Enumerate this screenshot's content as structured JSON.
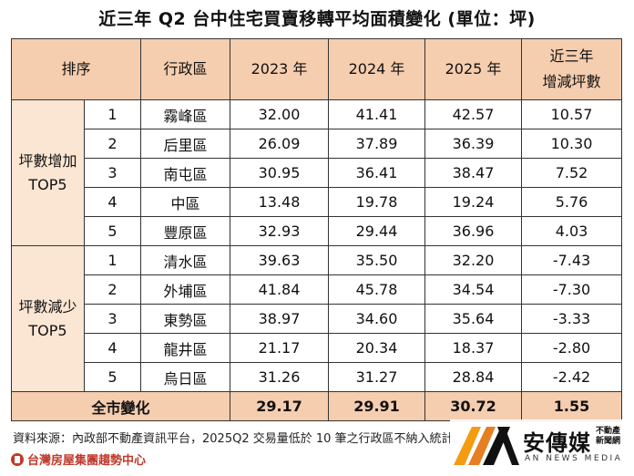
{
  "title": "近三年 Q2  台中住宅買賣移轉平均面積變化  (單位：坪)",
  "headers": {
    "rank": "排序",
    "district": "行政區",
    "y2023": "2023 年",
    "y2024": "2024 年",
    "y2025": "2025 年",
    "change_line1": "近三年",
    "change_line2": "增減坪數"
  },
  "groups": {
    "increase_line1": "坪數增加",
    "increase_line2": "TOP5",
    "decrease_line1": "坪數減少",
    "decrease_line2": "TOP5"
  },
  "rows": [
    {
      "rank": "1",
      "district": "霧峰區",
      "y2023": "32.00",
      "y2024": "41.41",
      "y2025": "42.57",
      "change": "10.57"
    },
    {
      "rank": "2",
      "district": "后里區",
      "y2023": "26.09",
      "y2024": "37.89",
      "y2025": "36.39",
      "change": "10.30"
    },
    {
      "rank": "3",
      "district": "南屯區",
      "y2023": "30.95",
      "y2024": "36.41",
      "y2025": "38.47",
      "change": "7.52"
    },
    {
      "rank": "4",
      "district": "中區",
      "y2023": "13.48",
      "y2024": "19.78",
      "y2025": "19.24",
      "change": "5.76"
    },
    {
      "rank": "5",
      "district": "豐原區",
      "y2023": "32.93",
      "y2024": "29.44",
      "y2025": "36.96",
      "change": "4.03"
    },
    {
      "rank": "1",
      "district": "清水區",
      "y2023": "39.63",
      "y2024": "35.50",
      "y2025": "32.20",
      "change": "-7.43"
    },
    {
      "rank": "2",
      "district": "外埔區",
      "y2023": "41.84",
      "y2024": "45.78",
      "y2025": "34.54",
      "change": "-7.30"
    },
    {
      "rank": "3",
      "district": "東勢區",
      "y2023": "38.97",
      "y2024": "34.60",
      "y2025": "35.64",
      "change": "-3.33"
    },
    {
      "rank": "4",
      "district": "龍井區",
      "y2023": "21.17",
      "y2024": "20.34",
      "y2025": "18.37",
      "change": "-2.80"
    },
    {
      "rank": "5",
      "district": "烏日區",
      "y2023": "31.26",
      "y2024": "31.27",
      "y2025": "28.84",
      "change": "-2.42"
    }
  ],
  "total": {
    "label": "全市變化",
    "y2023": "29.17",
    "y2024": "29.91",
    "y2025": "30.72",
    "change": "1.55"
  },
  "footnote": "資料來源：內政部不動產資訊平台，2025Q2 交易量低於 10 筆之行政區不納入統計。",
  "source_logo_text": "台灣房屋集團趨勢中心",
  "brand": {
    "name": "安傳媒",
    "sub": "不動產新聞網",
    "en": "AN NEWS MEDIA"
  },
  "colors": {
    "header_bg": "#f5cdaf",
    "group_bg": "#fbe5d3",
    "logo_red": "#c0392b",
    "brand_orange": "#f39c12"
  }
}
